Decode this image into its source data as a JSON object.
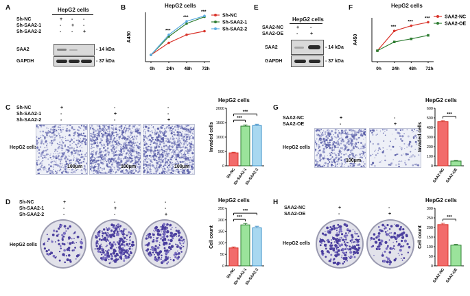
{
  "panels": {
    "A": {
      "letter": "A",
      "title": "HepG2 cells",
      "rows": [
        "Sh-NC",
        "Sh-SAA2-1",
        "Sh-SAA2-2"
      ],
      "signs": [
        [
          "+",
          "-",
          "-"
        ],
        [
          "-",
          "+",
          "-"
        ],
        [
          "-",
          "-",
          "+"
        ]
      ],
      "bands": [
        {
          "name": "SAA2",
          "kda": "14 kDa"
        },
        {
          "name": "GAPDH",
          "kda": "37 kDa"
        }
      ]
    },
    "B": {
      "letter": "B",
      "title": "HepG2 cells",
      "stars": [
        "***",
        "***",
        "***"
      ],
      "chart_data": {
        "type": "line",
        "title": "HepG2 cells",
        "x": [
          "0h",
          "24h",
          "48h",
          "72h"
        ],
        "ylabel": "A450",
        "xlabel": "",
        "series": [
          {
            "name": "Sh-NC",
            "color": "#d9342b",
            "values": [
              0.45,
              0.72,
              0.9,
              0.98
            ]
          },
          {
            "name": "Sh-SAA2-1",
            "color": "#2e7d32",
            "values": [
              0.45,
              0.86,
              1.15,
              1.3
            ]
          },
          {
            "name": "Sh-SAA2-2",
            "color": "#5dade2",
            "values": [
              0.45,
              0.9,
              1.2,
              1.32
            ]
          }
        ],
        "ylim": [
          0.3,
          1.4
        ]
      }
    },
    "E": {
      "letter": "E",
      "title": "HepG2 cells",
      "rows": [
        "SAA2-NC",
        "SAA2-OE"
      ],
      "signs": [
        [
          "+",
          "-"
        ],
        [
          "-",
          "+"
        ]
      ],
      "bands": [
        {
          "name": "SAA2",
          "kda": "14 kDa"
        },
        {
          "name": "GAPDH",
          "kda": "37 kDa"
        }
      ]
    },
    "F": {
      "letter": "F",
      "title": "HepG2 cells",
      "stars": [
        "***",
        "***",
        "***"
      ],
      "chart_data": {
        "type": "line",
        "title": "HepG2 cells",
        "x": [
          "0h",
          "24h",
          "48h",
          "72h"
        ],
        "ylabel": "A450",
        "xlabel": "",
        "series": [
          {
            "name": "SAA2-NC",
            "color": "#d9342b",
            "values": [
              0.55,
              1.0,
              1.12,
              1.2
            ]
          },
          {
            "name": "SAA2-OE",
            "color": "#2e7d32",
            "values": [
              0.55,
              0.75,
              0.82,
              0.9
            ]
          }
        ],
        "ylim": [
          0.3,
          1.3
        ]
      }
    },
    "C": {
      "letter": "C",
      "rows": [
        "Sh-NC",
        "Sh-SAA2-1",
        "Sh-SAA2-2"
      ],
      "signs": [
        [
          "+",
          "-",
          "-"
        ],
        [
          "-",
          "+",
          "-"
        ],
        [
          "-",
          "-",
          "+"
        ]
      ],
      "cells_label": "HepG2 cells",
      "scale": "100μm",
      "stars": [
        "***",
        "***"
      ],
      "chart_data": {
        "type": "bar",
        "title": "HepG2 cells",
        "categories": [
          "Sh-NC",
          "Sh-SAA2-1",
          "Sh-SAA2-2"
        ],
        "values": [
          450,
          1380,
          1400
        ],
        "errors": [
          20,
          40,
          45
        ],
        "colors": [
          "#f26b6b",
          "#9be39b",
          "#a8d8f0"
        ],
        "edges": [
          "#d9342b",
          "#2e7d32",
          "#3a8fc7"
        ],
        "ylabel": "Invaded cells",
        "yticks": [
          0,
          500,
          1000,
          1500,
          2000
        ],
        "ylim": [
          0,
          2000
        ]
      }
    },
    "G": {
      "letter": "G",
      "rows": [
        "SAA2-NC",
        "SAA2-OE"
      ],
      "signs": [
        [
          "+",
          "-"
        ],
        [
          "-",
          "+"
        ]
      ],
      "cells_label": "HepG2 cells",
      "scale": "100μm",
      "stars": [
        "***"
      ],
      "chart_data": {
        "type": "bar",
        "title": "HepG2 cells",
        "categories": [
          "SAA2-NC",
          "SAA2-OE"
        ],
        "values": [
          460,
          50
        ],
        "errors": [
          12,
          5
        ],
        "colors": [
          "#f26b6b",
          "#9be39b"
        ],
        "edges": [
          "#d9342b",
          "#2e7d32"
        ],
        "ylabel": "Invaded cells",
        "yticks": [
          0,
          100,
          200,
          300,
          400,
          500,
          600
        ],
        "ylim": [
          0,
          600
        ]
      }
    },
    "D": {
      "letter": "D",
      "rows": [
        "Sh-NC",
        "Sh-SAA2-1",
        "Sh-SAA2-2"
      ],
      "signs": [
        [
          "+",
          "-",
          "-"
        ],
        [
          "-",
          "+",
          "-"
        ],
        [
          "-",
          "-",
          "+"
        ]
      ],
      "cells_label": "HepG2 cells",
      "stars": [
        "***",
        "***"
      ],
      "chart_data": {
        "type": "bar",
        "title": "HepG2 cells",
        "categories": [
          "Sh-NC",
          "Sh-SAA2-1",
          "Sh-SAA2-2"
        ],
        "values": [
          78,
          178,
          165
        ],
        "errors": [
          4,
          6,
          7
        ],
        "colors": [
          "#f26b6b",
          "#9be39b",
          "#a8d8f0"
        ],
        "edges": [
          "#d9342b",
          "#2e7d32",
          "#3a8fc7"
        ],
        "ylabel": "Cell count",
        "yticks": [
          0,
          50,
          100,
          150,
          200,
          250
        ],
        "ylim": [
          0,
          250
        ]
      }
    },
    "H": {
      "letter": "H",
      "rows": [
        "SAA2-NC",
        "SAA2-OE"
      ],
      "signs": [
        [
          "+",
          "-"
        ],
        [
          "-",
          "+"
        ]
      ],
      "cells_label": "HepG2 cells",
      "stars": [
        "***"
      ],
      "chart_data": {
        "type": "bar",
        "title": "HepG2 cells",
        "categories": [
          "SAA2-NC",
          "SAA2-OE"
        ],
        "values": [
          215,
          108
        ],
        "errors": [
          7,
          4
        ],
        "colors": [
          "#f26b6b",
          "#9be39b"
        ],
        "edges": [
          "#d9342b",
          "#2e7d32"
        ],
        "ylabel": "Cell count",
        "yticks": [
          0,
          50,
          100,
          150,
          200,
          250,
          300
        ],
        "ylim": [
          0,
          300
        ]
      }
    }
  }
}
